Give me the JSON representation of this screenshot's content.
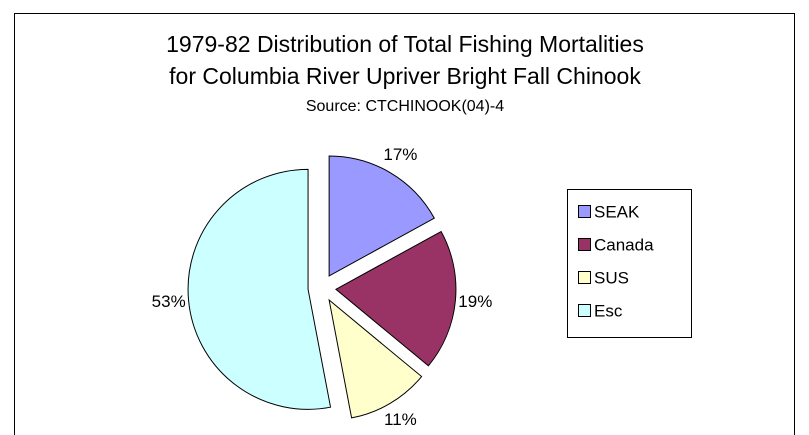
{
  "chart_data": {
    "type": "pie",
    "title": "1979-82 Distribution of Total Fishing Mortalities",
    "title_line2": "for Columbia River Upriver Bright Fall Chinook",
    "subtitle": "Source:  CTCHINOOK(04)-4",
    "categories": [
      "SEAK",
      "Canada",
      "SUS",
      "Esc"
    ],
    "values": [
      17,
      19,
      11,
      53
    ],
    "value_labels": [
      "17%",
      "19%",
      "11%",
      "53%"
    ],
    "colors": [
      "#9999ff",
      "#993366",
      "#ffffcc",
      "#ccffff"
    ],
    "legend": "right"
  }
}
